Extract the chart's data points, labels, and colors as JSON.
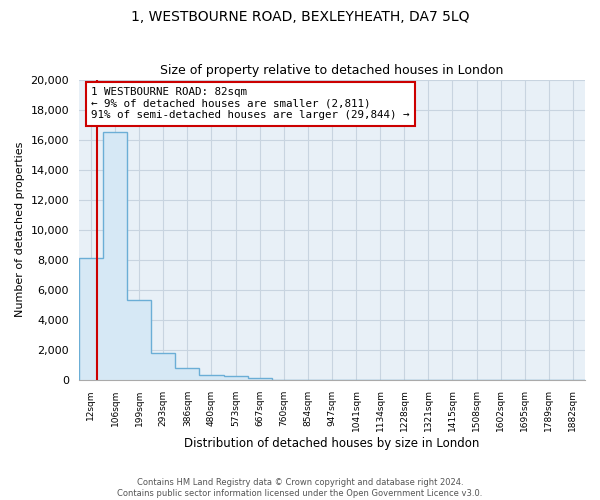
{
  "title": "1, WESTBOURNE ROAD, BEXLEYHEATH, DA7 5LQ",
  "subtitle": "Size of property relative to detached houses in London",
  "xlabel": "Distribution of detached houses by size in London",
  "ylabel": "Number of detached properties",
  "bar_labels": [
    "12sqm",
    "106sqm",
    "199sqm",
    "293sqm",
    "386sqm",
    "480sqm",
    "573sqm",
    "667sqm",
    "760sqm",
    "854sqm",
    "947sqm",
    "1041sqm",
    "1134sqm",
    "1228sqm",
    "1321sqm",
    "1415sqm",
    "1508sqm",
    "1602sqm",
    "1695sqm",
    "1789sqm",
    "1882sqm"
  ],
  "bar_values": [
    8100,
    16500,
    5300,
    1750,
    750,
    300,
    220,
    130,
    0,
    0,
    0,
    0,
    0,
    0,
    0,
    0,
    0,
    0,
    0,
    0,
    0
  ],
  "bar_fill_color": "#d6e8f5",
  "bar_edge_color": "#6baed6",
  "highlight_color": "#cc0000",
  "annotation_title": "1 WESTBOURNE ROAD: 82sqm",
  "annotation_line1": "← 9% of detached houses are smaller (2,811)",
  "annotation_line2": "91% of semi-detached houses are larger (29,844) →",
  "annotation_box_color": "#ffffff",
  "annotation_box_edge": "#cc0000",
  "ylim": [
    0,
    20000
  ],
  "yticks": [
    0,
    2000,
    4000,
    6000,
    8000,
    10000,
    12000,
    14000,
    16000,
    18000,
    20000
  ],
  "ax_bg_color": "#e8f0f7",
  "background_color": "#ffffff",
  "grid_color": "#c8d4e0",
  "footer_line1": "Contains HM Land Registry data © Crown copyright and database right 2024.",
  "footer_line2": "Contains public sector information licensed under the Open Government Licence v3.0."
}
